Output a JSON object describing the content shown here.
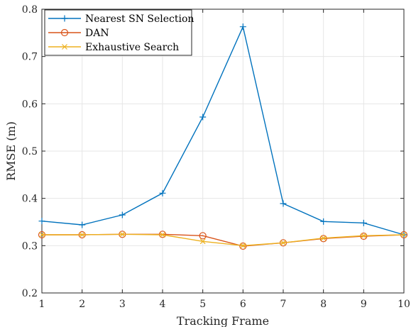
{
  "chart_data": {
    "type": "line",
    "xlabel": "Tracking Frame",
    "ylabel": "RMSE (m)",
    "xlim": [
      1,
      10
    ],
    "ylim": [
      0.2,
      0.8
    ],
    "x_ticks": [
      1,
      2,
      3,
      4,
      5,
      6,
      7,
      8,
      9,
      10
    ],
    "y_ticks": [
      0.2,
      0.3,
      0.4,
      0.5,
      0.6,
      0.7,
      0.8
    ],
    "y_tick_labels": [
      "0.2",
      "0.3",
      "0.4",
      "0.5",
      "0.6",
      "0.7",
      "0.8"
    ],
    "grid": true,
    "legend_position": "top-left",
    "x": [
      1,
      2,
      3,
      4,
      5,
      6,
      7,
      8,
      9,
      10
    ],
    "series": [
      {
        "name": "Nearest SN Selection",
        "color": "#0072BD",
        "marker": "plus",
        "values": [
          0.352,
          0.344,
          0.365,
          0.411,
          0.572,
          0.763,
          0.389,
          0.351,
          0.348,
          0.323
        ]
      },
      {
        "name": "DAN",
        "color": "#D95319",
        "marker": "circle",
        "values": [
          0.323,
          0.323,
          0.324,
          0.324,
          0.321,
          0.299,
          0.306,
          0.315,
          0.32,
          0.323
        ]
      },
      {
        "name": "Exhaustive Search",
        "color": "#EDB120",
        "marker": "x",
        "values": [
          0.323,
          0.323,
          0.324,
          0.323,
          0.309,
          0.3,
          0.306,
          0.316,
          0.321,
          0.323
        ]
      }
    ]
  }
}
